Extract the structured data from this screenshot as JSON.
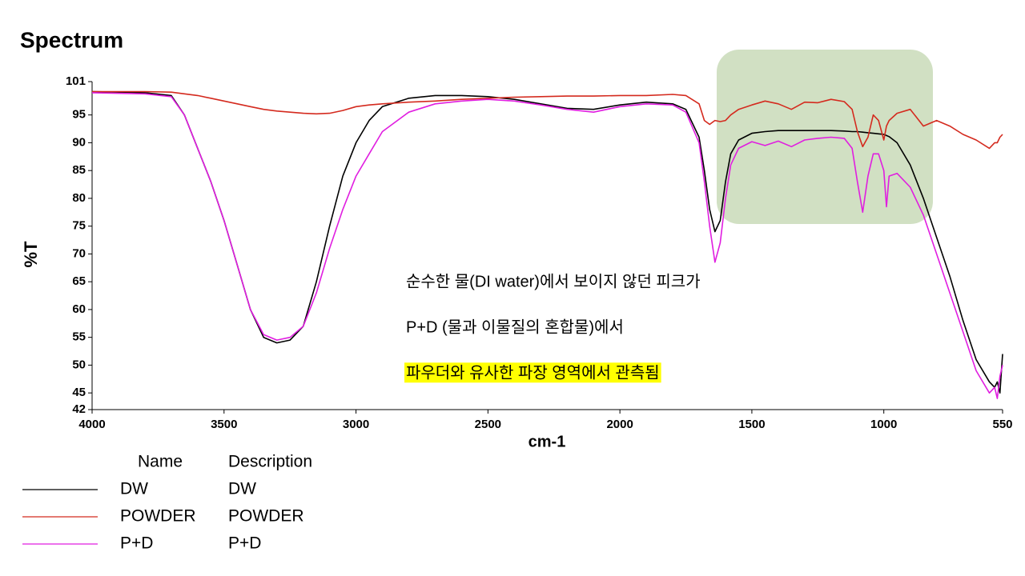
{
  "chart_data": {
    "type": "line",
    "title": "Spectrum",
    "xlabel": "cm-1",
    "ylabel": "%T",
    "x": [
      4000,
      3800,
      3700,
      3650,
      3600,
      3550,
      3500,
      3450,
      3400,
      3350,
      3300,
      3250,
      3200,
      3150,
      3100,
      3050,
      3000,
      2950,
      2900,
      2800,
      2700,
      2600,
      2500,
      2400,
      2300,
      2200,
      2100,
      2000,
      1900,
      1800,
      1750,
      1700,
      1680,
      1660,
      1640,
      1620,
      1600,
      1580,
      1550,
      1500,
      1450,
      1400,
      1350,
      1300,
      1250,
      1200,
      1150,
      1120,
      1100,
      1080,
      1060,
      1040,
      1020,
      1000,
      990,
      980,
      950,
      900,
      850,
      800,
      750,
      700,
      650,
      600,
      580,
      570,
      560,
      550
    ],
    "series": [
      {
        "name": "DW",
        "description": "DW",
        "color": "#000000",
        "values": [
          99.2,
          99,
          98.5,
          95,
          89,
          83,
          76,
          68,
          60,
          55,
          54,
          54.5,
          57,
          65,
          75,
          84,
          90,
          94,
          96.5,
          98,
          98.5,
          98.5,
          98.3,
          97.8,
          97,
          96.2,
          96,
          96.8,
          97.3,
          97,
          96,
          91,
          85,
          78,
          74,
          76,
          83,
          88,
          90.5,
          91.7,
          92,
          92.2,
          92.2,
          92.2,
          92.2,
          92.2,
          92.1,
          92,
          92,
          91.9,
          91.8,
          91.7,
          91.6,
          91.5,
          91.3,
          91.1,
          90,
          86,
          80,
          73,
          66,
          58,
          51,
          47,
          46,
          47,
          45,
          52
        ]
      },
      {
        "name": "POWDER",
        "description": "POWDER",
        "color": "#d42a1e",
        "values": [
          99.2,
          99.2,
          99.1,
          98.8,
          98.5,
          98,
          97.5,
          97,
          96.5,
          96,
          95.7,
          95.5,
          95.3,
          95.2,
          95.3,
          95.8,
          96.5,
          96.8,
          97,
          97.3,
          97.5,
          97.8,
          98,
          98.2,
          98.3,
          98.4,
          98.4,
          98.5,
          98.5,
          98.7,
          98.5,
          97,
          94,
          93.3,
          94,
          93.8,
          94,
          95,
          96,
          96.8,
          97.5,
          97,
          96,
          97.3,
          97.2,
          97.8,
          97.4,
          96,
          92,
          89.3,
          91,
          95,
          94,
          90.5,
          93,
          94,
          95.3,
          96,
          93,
          94,
          93,
          91.5,
          90.5,
          89,
          90,
          90,
          91,
          91.5
        ]
      },
      {
        "name": "P+D",
        "description": "P+D",
        "color": "#e01ee0",
        "values": [
          99,
          98.8,
          98.3,
          95,
          89,
          83,
          76,
          68,
          60,
          55.5,
          54.5,
          55,
          57,
          63,
          71,
          78,
          84,
          88,
          92,
          95.5,
          97,
          97.5,
          97.8,
          97.5,
          96.8,
          96,
          95.5,
          96.5,
          97,
          96.8,
          95.5,
          90,
          83,
          75,
          68.5,
          72,
          80,
          86,
          89,
          90.2,
          89.5,
          90.3,
          89.3,
          90.5,
          90.8,
          91,
          90.8,
          89,
          83,
          77.5,
          84,
          88,
          88,
          85,
          78.5,
          84,
          84.5,
          82,
          77,
          70,
          63,
          56,
          49,
          45,
          46,
          44,
          48,
          50
        ]
      }
    ],
    "xlim": [
      4000,
      550
    ],
    "xticks": [
      4000,
      3500,
      3000,
      2500,
      2000,
      1500,
      1000,
      550
    ],
    "ylim": [
      42,
      101
    ],
    "yticks": [
      42,
      45,
      50,
      55,
      60,
      65,
      70,
      75,
      80,
      85,
      90,
      95,
      101
    ],
    "grid": false,
    "legend_headers": [
      "Name",
      "Description"
    ],
    "annotations": [
      {
        "text": "순수한 물(DI water)에서 보이지 않던 피크가"
      },
      {
        "text": "P+D (물과 이물질의 혼합물)에서"
      },
      {
        "text": "파우더와 유사한 파장 영역에서 관측됨",
        "background": "#ffff00"
      }
    ]
  }
}
